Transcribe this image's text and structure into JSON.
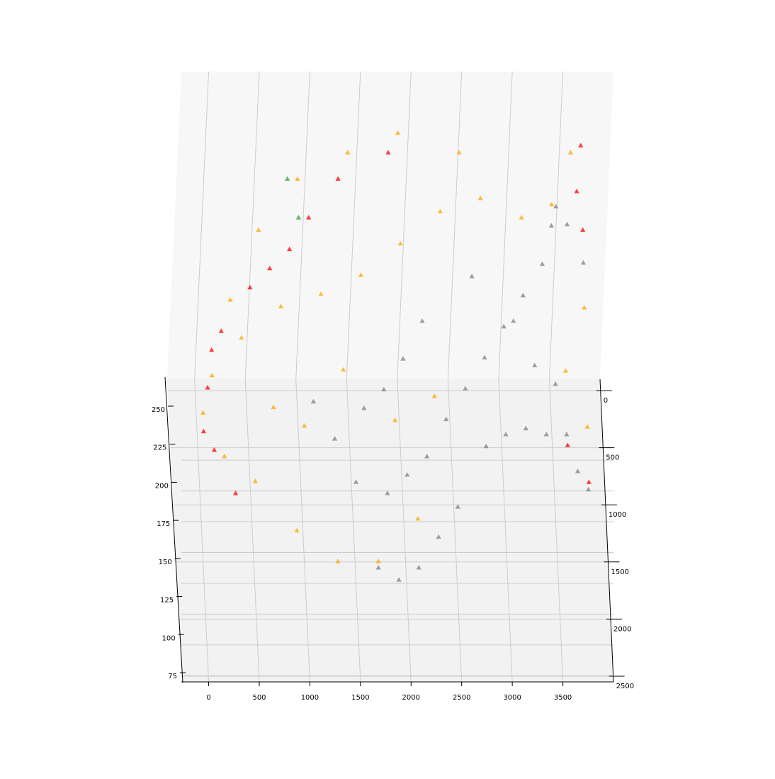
{
  "chart_data": {
    "type": "scatter",
    "projection": "3d",
    "marker": "triangle",
    "title": "",
    "xlabel": "",
    "ylabel": "",
    "zlabel": "",
    "grid": true,
    "xlim": [
      -270,
      4000
    ],
    "ylim": [
      -100,
      2550
    ],
    "zlim": [
      70,
      270
    ],
    "x_ticks": [
      "0",
      "500",
      "1000",
      "1500",
      "2000",
      "2500",
      "3000",
      "3500"
    ],
    "x_tick_values": [
      0,
      500,
      1000,
      1500,
      2000,
      2500,
      3000,
      3500
    ],
    "y_ticks": [
      "0",
      "500",
      "1000",
      "1500",
      "2000",
      "2500"
    ],
    "y_tick_values": [
      0,
      500,
      1000,
      1500,
      2000,
      2500
    ],
    "z_ticks": [
      "75",
      "100",
      "125",
      "150",
      "175",
      "200",
      "225",
      "250"
    ],
    "z_tick_values": [
      75,
      100,
      125,
      150,
      175,
      200,
      225,
      250
    ],
    "colors": {
      "gray": "#808080",
      "orange": "#ffa500",
      "red": "#ff0000",
      "green": "#2ca02c",
      "pane_back": "#f7f7f7",
      "pane_floor": "#f2f2f2",
      "grid": "#cccccc"
    },
    "series": [
      {
        "color": "gray",
        "points": [
          [
            3500,
            300,
            215
          ],
          [
            3550,
            200,
            220
          ],
          [
            3650,
            400,
            225
          ],
          [
            3400,
            500,
            205
          ],
          [
            3200,
            700,
            200
          ],
          [
            3000,
            900,
            195
          ],
          [
            2800,
            1100,
            190
          ],
          [
            2600,
            1300,
            185
          ],
          [
            2400,
            1500,
            180
          ],
          [
            2200,
            1700,
            170
          ],
          [
            2000,
            1800,
            165
          ],
          [
            1800,
            1900,
            160
          ],
          [
            3600,
            1300,
            150
          ],
          [
            3400,
            1300,
            150
          ],
          [
            3200,
            1250,
            150
          ],
          [
            3000,
            1300,
            150
          ],
          [
            2800,
            1400,
            150
          ],
          [
            3700,
            1500,
            140
          ],
          [
            3800,
            1600,
            135
          ],
          [
            3100,
            800,
            190
          ],
          [
            3300,
            1000,
            175
          ],
          [
            3500,
            1100,
            170
          ],
          [
            2500,
            1800,
            140
          ],
          [
            2300,
            2000,
            135
          ],
          [
            2100,
            2100,
            120
          ],
          [
            1900,
            2150,
            115
          ],
          [
            1700,
            2100,
            120
          ],
          [
            1500,
            1700,
            150
          ],
          [
            1300,
            1500,
            165
          ],
          [
            1100,
            1300,
            175
          ],
          [
            1600,
            1300,
            170
          ],
          [
            1800,
            1200,
            175
          ],
          [
            2000,
            1000,
            180
          ],
          [
            2200,
            800,
            190
          ],
          [
            2700,
            600,
            205
          ],
          [
            3800,
            600,
            215
          ]
        ]
      },
      {
        "color": "orange",
        "points": [
          [
            3700,
            100,
            250
          ],
          [
            3500,
            350,
            235
          ],
          [
            3200,
            400,
            230
          ],
          [
            2800,
            300,
            235
          ],
          [
            2400,
            350,
            230
          ],
          [
            2000,
            500,
            220
          ],
          [
            1600,
            700,
            215
          ],
          [
            1200,
            800,
            210
          ],
          [
            800,
            900,
            210
          ],
          [
            400,
            1100,
            205
          ],
          [
            100,
            1300,
            195
          ],
          [
            0,
            1500,
            185
          ],
          [
            200,
            1700,
            170
          ],
          [
            500,
            1800,
            160
          ],
          [
            900,
            2000,
            140
          ],
          [
            1300,
            2100,
            125
          ],
          [
            1700,
            2100,
            125
          ],
          [
            2100,
            1900,
            140
          ],
          [
            3800,
            1400,
            165
          ],
          [
            3600,
            1100,
            180
          ],
          [
            3800,
            800,
            200
          ],
          [
            2600,
            100,
            250
          ],
          [
            2000,
            0,
            255
          ],
          [
            1500,
            100,
            250
          ],
          [
            1000,
            200,
            240
          ],
          [
            600,
            500,
            230
          ],
          [
            300,
            900,
            215
          ],
          [
            1000,
            1500,
            175
          ],
          [
            700,
            1400,
            180
          ],
          [
            1400,
            1200,
            190
          ],
          [
            1900,
            1400,
            170
          ],
          [
            2300,
            1200,
            170
          ]
        ]
      },
      {
        "color": "red",
        "points": [
          [
            3800,
            100,
            255
          ],
          [
            3750,
            300,
            240
          ],
          [
            3800,
            500,
            230
          ],
          [
            200,
            1100,
            210
          ],
          [
            100,
            1200,
            205
          ],
          [
            50,
            1400,
            195
          ],
          [
            0,
            1600,
            180
          ],
          [
            100,
            1700,
            175
          ],
          [
            300,
            1900,
            160
          ],
          [
            500,
            800,
            215
          ],
          [
            700,
            700,
            220
          ],
          [
            900,
            600,
            225
          ],
          [
            1100,
            400,
            230
          ],
          [
            1400,
            200,
            240
          ],
          [
            1900,
            100,
            250
          ],
          [
            3600,
            1500,
            160
          ],
          [
            3800,
            1700,
            150
          ]
        ]
      },
      {
        "color": "green",
        "points": [
          [
            1000,
            400,
            230
          ],
          [
            900,
            200,
            240
          ]
        ]
      }
    ]
  }
}
